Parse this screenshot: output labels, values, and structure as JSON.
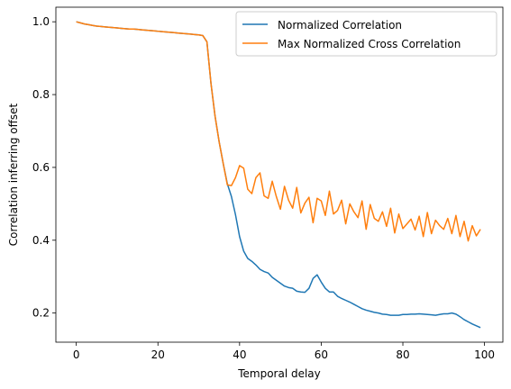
{
  "chart_data": {
    "type": "line",
    "xlabel": "Temporal delay",
    "ylabel": "Correlation inferring offset",
    "xlim": [
      -5,
      104.5
    ],
    "ylim": [
      0.12,
      1.04
    ],
    "xticks": [
      0,
      20,
      40,
      60,
      80,
      100
    ],
    "yticks": [
      0.2,
      0.4,
      0.6,
      0.8,
      1.0
    ],
    "xtick_labels": [
      "0",
      "20",
      "40",
      "60",
      "80",
      "100"
    ],
    "ytick_labels": [
      "0.2",
      "0.4",
      "0.6",
      "0.8",
      "1.0"
    ],
    "grid": false,
    "legend_position": "upper right",
    "x": [
      0,
      1,
      2,
      3,
      4,
      5,
      6,
      7,
      8,
      9,
      10,
      11,
      12,
      13,
      14,
      15,
      16,
      17,
      18,
      19,
      20,
      21,
      22,
      23,
      24,
      25,
      26,
      27,
      28,
      29,
      30,
      31,
      32,
      33,
      34,
      35,
      36,
      37,
      38,
      39,
      40,
      41,
      42,
      43,
      44,
      45,
      46,
      47,
      48,
      49,
      50,
      51,
      52,
      53,
      54,
      55,
      56,
      57,
      58,
      59,
      60,
      61,
      62,
      63,
      64,
      65,
      66,
      67,
      68,
      69,
      70,
      71,
      72,
      73,
      74,
      75,
      76,
      77,
      78,
      79,
      80,
      81,
      82,
      83,
      84,
      85,
      86,
      87,
      88,
      89,
      90,
      91,
      92,
      93,
      94,
      95,
      96,
      97,
      98,
      99
    ],
    "series": [
      {
        "name": "Normalized Correlation",
        "color": "#1f77b4",
        "values": [
          1.0,
          0.997,
          0.994,
          0.992,
          0.99,
          0.988,
          0.987,
          0.986,
          0.985,
          0.984,
          0.983,
          0.982,
          0.981,
          0.98,
          0.98,
          0.979,
          0.978,
          0.977,
          0.976,
          0.975,
          0.974,
          0.973,
          0.972,
          0.971,
          0.97,
          0.969,
          0.968,
          0.967,
          0.966,
          0.965,
          0.964,
          0.962,
          0.945,
          0.83,
          0.74,
          0.67,
          0.61,
          0.555,
          0.52,
          0.47,
          0.41,
          0.37,
          0.35,
          0.342,
          0.332,
          0.32,
          0.314,
          0.31,
          0.298,
          0.29,
          0.282,
          0.274,
          0.27,
          0.268,
          0.26,
          0.258,
          0.257,
          0.268,
          0.295,
          0.305,
          0.285,
          0.268,
          0.258,
          0.258,
          0.246,
          0.24,
          0.235,
          0.23,
          0.224,
          0.218,
          0.212,
          0.208,
          0.205,
          0.202,
          0.2,
          0.197,
          0.196,
          0.194,
          0.194,
          0.194,
          0.196,
          0.196,
          0.197,
          0.197,
          0.198,
          0.197,
          0.196,
          0.195,
          0.194,
          0.196,
          0.198,
          0.198,
          0.2,
          0.197,
          0.19,
          0.182,
          0.176,
          0.17,
          0.165,
          0.16
        ]
      },
      {
        "name": "Max Normalized Cross Correlation",
        "color": "#ff7f0e",
        "values": [
          1.0,
          0.997,
          0.994,
          0.992,
          0.99,
          0.988,
          0.987,
          0.986,
          0.985,
          0.984,
          0.983,
          0.982,
          0.981,
          0.98,
          0.98,
          0.979,
          0.978,
          0.977,
          0.976,
          0.975,
          0.974,
          0.973,
          0.972,
          0.971,
          0.97,
          0.969,
          0.968,
          0.967,
          0.966,
          0.965,
          0.964,
          0.962,
          0.945,
          0.83,
          0.74,
          0.67,
          0.61,
          0.552,
          0.55,
          0.572,
          0.605,
          0.598,
          0.54,
          0.528,
          0.572,
          0.585,
          0.522,
          0.515,
          0.562,
          0.52,
          0.485,
          0.548,
          0.51,
          0.488,
          0.545,
          0.475,
          0.502,
          0.518,
          0.448,
          0.515,
          0.508,
          0.468,
          0.535,
          0.472,
          0.482,
          0.51,
          0.445,
          0.5,
          0.478,
          0.462,
          0.508,
          0.43,
          0.498,
          0.46,
          0.452,
          0.478,
          0.438,
          0.488,
          0.42,
          0.472,
          0.432,
          0.445,
          0.458,
          0.428,
          0.466,
          0.41,
          0.476,
          0.418,
          0.455,
          0.44,
          0.43,
          0.46,
          0.418,
          0.468,
          0.41,
          0.452,
          0.398,
          0.44,
          0.412,
          0.43
        ]
      }
    ]
  }
}
